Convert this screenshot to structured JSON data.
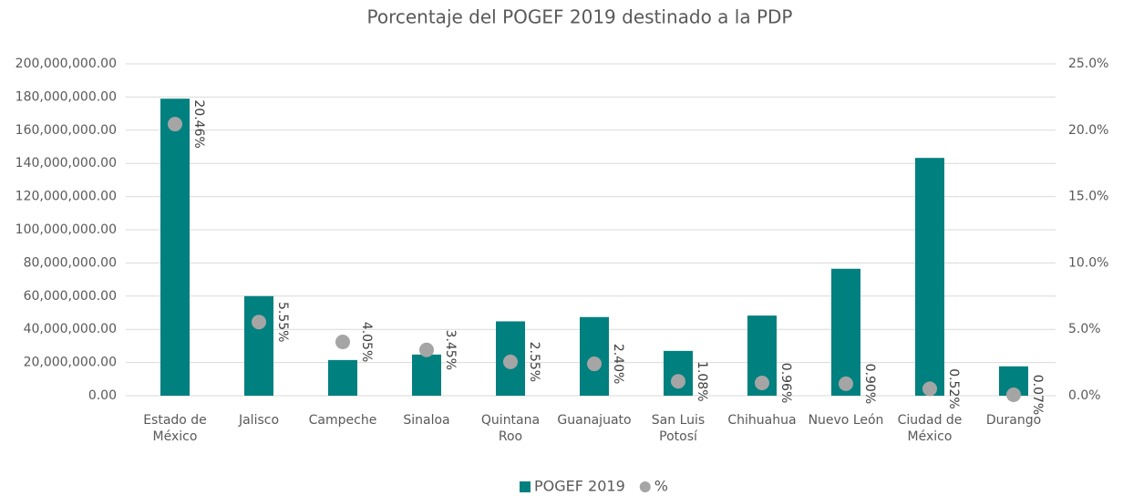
{
  "chart_data": {
    "type": "bar",
    "title": "Porcentaje del POGEF 2019 destinado a la PDP",
    "categories": [
      "Estado de México",
      "Jalisco",
      "Campeche",
      "Sinaloa",
      "Quintana Roo",
      "Guanajuato",
      "San Luis Potosí",
      "Chihuahua",
      "Nuevo León",
      "Ciudad de México",
      "Durango"
    ],
    "series": [
      {
        "name": "POGEF 2019",
        "color": "#00807f",
        "type": "bar",
        "values": [
          179000000,
          60000000,
          21500000,
          24800000,
          44800000,
          47400000,
          27000000,
          48300000,
          76500000,
          143300000,
          17700000
        ]
      },
      {
        "name": "%",
        "color": "#a5a5a5",
        "type": "scatter",
        "axis": "y2",
        "values": [
          20.46,
          5.55,
          4.05,
          3.45,
          2.55,
          2.4,
          1.08,
          0.96,
          0.9,
          0.52,
          0.07
        ],
        "value_labels": [
          "20.46%",
          "5.55%",
          "4.05%",
          "3.45%",
          "2.55%",
          "2.40%",
          "1.08%",
          "0.96%",
          "0.90%",
          "0.52%",
          "0.07%"
        ]
      }
    ],
    "ylim": [
      0,
      200000000
    ],
    "yticks": [
      {
        "value": 0,
        "label": "0.00"
      },
      {
        "value": 20000000,
        "label": "20,000,000.00"
      },
      {
        "value": 40000000,
        "label": "40,000,000.00"
      },
      {
        "value": 60000000,
        "label": "60,000,000.00"
      },
      {
        "value": 80000000,
        "label": "80,000,000.00"
      },
      {
        "value": 100000000,
        "label": "100,000,000.00"
      },
      {
        "value": 120000000,
        "label": "120,000,000.00"
      },
      {
        "value": 140000000,
        "label": "140,000,000.00"
      },
      {
        "value": 160000000,
        "label": "160,000,000.00"
      },
      {
        "value": 180000000,
        "label": "180,000,000.00"
      },
      {
        "value": 200000000,
        "label": "200,000,000.00"
      }
    ],
    "y2lim": [
      0,
      25
    ],
    "y2ticks": [
      {
        "value": 0,
        "label": "0.0%"
      },
      {
        "value": 5,
        "label": "5.0%"
      },
      {
        "value": 10,
        "label": "10.0%"
      },
      {
        "value": 15,
        "label": "15.0%"
      },
      {
        "value": 20,
        "label": "20.0%"
      },
      {
        "value": 25,
        "label": "25.0%"
      }
    ],
    "grid": true,
    "legend": "bottom"
  }
}
